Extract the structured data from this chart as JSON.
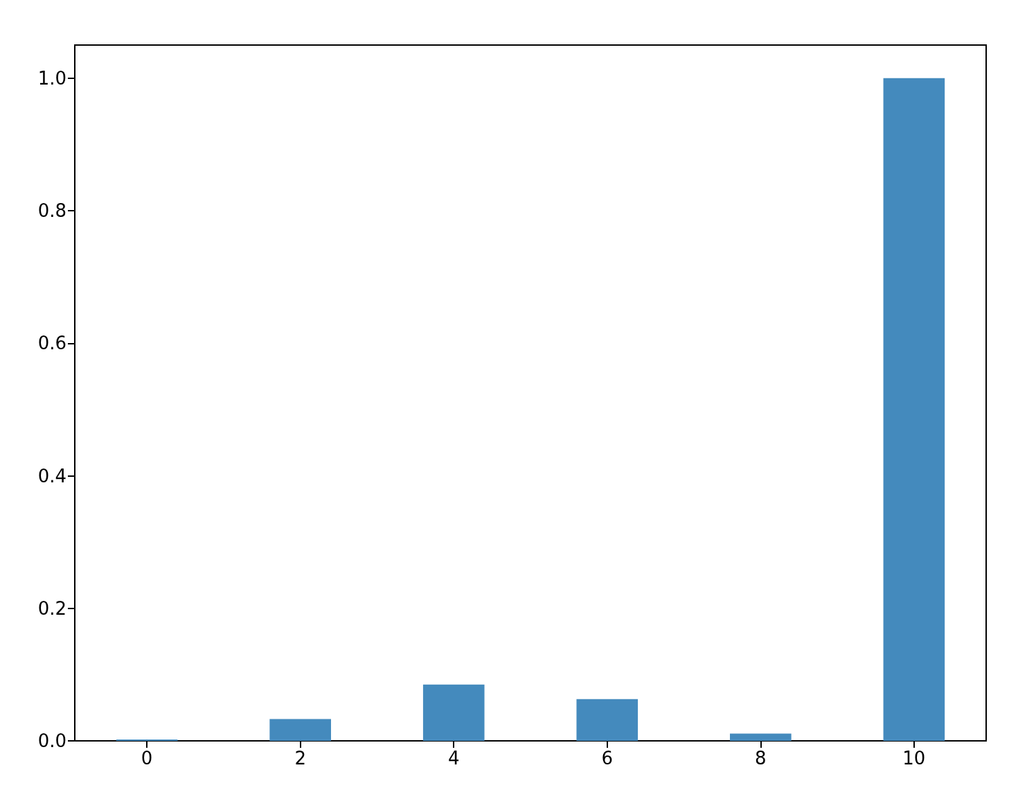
{
  "chart_data": {
    "type": "bar",
    "x": [
      0,
      2,
      4,
      6,
      8,
      10
    ],
    "values": [
      0.002,
      0.033,
      0.085,
      0.063,
      0.011,
      1.0
    ],
    "color": "#448abd",
    "xlim": [
      -0.94,
      10.94
    ],
    "ylim": [
      0,
      1.05
    ],
    "xticks": [
      0,
      2,
      4,
      6,
      8,
      10
    ],
    "yticks": [
      {
        "value": 0,
        "label": "0.0"
      },
      0.2,
      0.4,
      0.6,
      0.8,
      {
        "value": 1,
        "label": "1.0"
      }
    ]
  }
}
